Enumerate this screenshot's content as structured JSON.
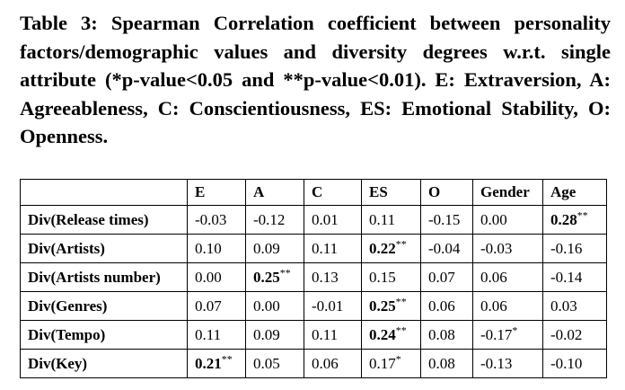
{
  "caption": "Table 3: Spearman Correlation coefficient between personality factors/demographic values and diversity degrees w.r.t. single attribute (*p-value<0.05 and **p-value<0.01). E: Extraversion, A: Agreeableness, C: Conscientiousness, ES: Emotional Stability, O: Openness.",
  "table": {
    "columns": [
      "",
      "E",
      "A",
      "C",
      "ES",
      "O",
      "Gender",
      "Age"
    ],
    "rows": [
      {
        "label": "Div(Release times)",
        "cells": [
          {
            "value": "-0.03",
            "sig": "",
            "bold": false
          },
          {
            "value": "-0.12",
            "sig": "",
            "bold": false
          },
          {
            "value": "0.01",
            "sig": "",
            "bold": false
          },
          {
            "value": "0.11",
            "sig": "",
            "bold": false
          },
          {
            "value": "-0.15",
            "sig": "",
            "bold": false
          },
          {
            "value": "0.00",
            "sig": "",
            "bold": false
          },
          {
            "value": "0.28",
            "sig": "**",
            "bold": true
          }
        ]
      },
      {
        "label": "Div(Artists)",
        "cells": [
          {
            "value": "0.10",
            "sig": "",
            "bold": false
          },
          {
            "value": "0.09",
            "sig": "",
            "bold": false
          },
          {
            "value": "0.11",
            "sig": "",
            "bold": false
          },
          {
            "value": "0.22",
            "sig": "**",
            "bold": true
          },
          {
            "value": "-0.04",
            "sig": "",
            "bold": false
          },
          {
            "value": "-0.03",
            "sig": "",
            "bold": false
          },
          {
            "value": "-0.16",
            "sig": "",
            "bold": false
          }
        ]
      },
      {
        "label": "Div(Artists number)",
        "cells": [
          {
            "value": "0.00",
            "sig": "",
            "bold": false
          },
          {
            "value": "0.25",
            "sig": "**",
            "bold": true
          },
          {
            "value": "0.13",
            "sig": "",
            "bold": false
          },
          {
            "value": "0.15",
            "sig": "",
            "bold": false
          },
          {
            "value": "0.07",
            "sig": "",
            "bold": false
          },
          {
            "value": "0.06",
            "sig": "",
            "bold": false
          },
          {
            "value": "-0.14",
            "sig": "",
            "bold": false
          }
        ]
      },
      {
        "label": "Div(Genres)",
        "cells": [
          {
            "value": "0.07",
            "sig": "",
            "bold": false
          },
          {
            "value": "0.00",
            "sig": "",
            "bold": false
          },
          {
            "value": "-0.01",
            "sig": "",
            "bold": false
          },
          {
            "value": "0.25",
            "sig": "**",
            "bold": true
          },
          {
            "value": "0.06",
            "sig": "",
            "bold": false
          },
          {
            "value": "0.06",
            "sig": "",
            "bold": false
          },
          {
            "value": "0.03",
            "sig": "",
            "bold": false
          }
        ]
      },
      {
        "label": "Div(Tempo)",
        "cells": [
          {
            "value": "0.11",
            "sig": "",
            "bold": false
          },
          {
            "value": "0.09",
            "sig": "",
            "bold": false
          },
          {
            "value": "0.11",
            "sig": "",
            "bold": false
          },
          {
            "value": "0.24",
            "sig": "**",
            "bold": true
          },
          {
            "value": "0.08",
            "sig": "",
            "bold": false
          },
          {
            "value": "-0.17",
            "sig": "*",
            "bold": false
          },
          {
            "value": "-0.02",
            "sig": "",
            "bold": false
          }
        ]
      },
      {
        "label": "Div(Key)",
        "cells": [
          {
            "value": "0.21",
            "sig": "**",
            "bold": true
          },
          {
            "value": "0.05",
            "sig": "",
            "bold": false
          },
          {
            "value": "0.06",
            "sig": "",
            "bold": false
          },
          {
            "value": "0.17",
            "sig": "*",
            "bold": false
          },
          {
            "value": "0.08",
            "sig": "",
            "bold": false
          },
          {
            "value": "-0.13",
            "sig": "",
            "bold": false
          },
          {
            "value": "-0.10",
            "sig": "",
            "bold": false
          }
        ]
      }
    ]
  }
}
